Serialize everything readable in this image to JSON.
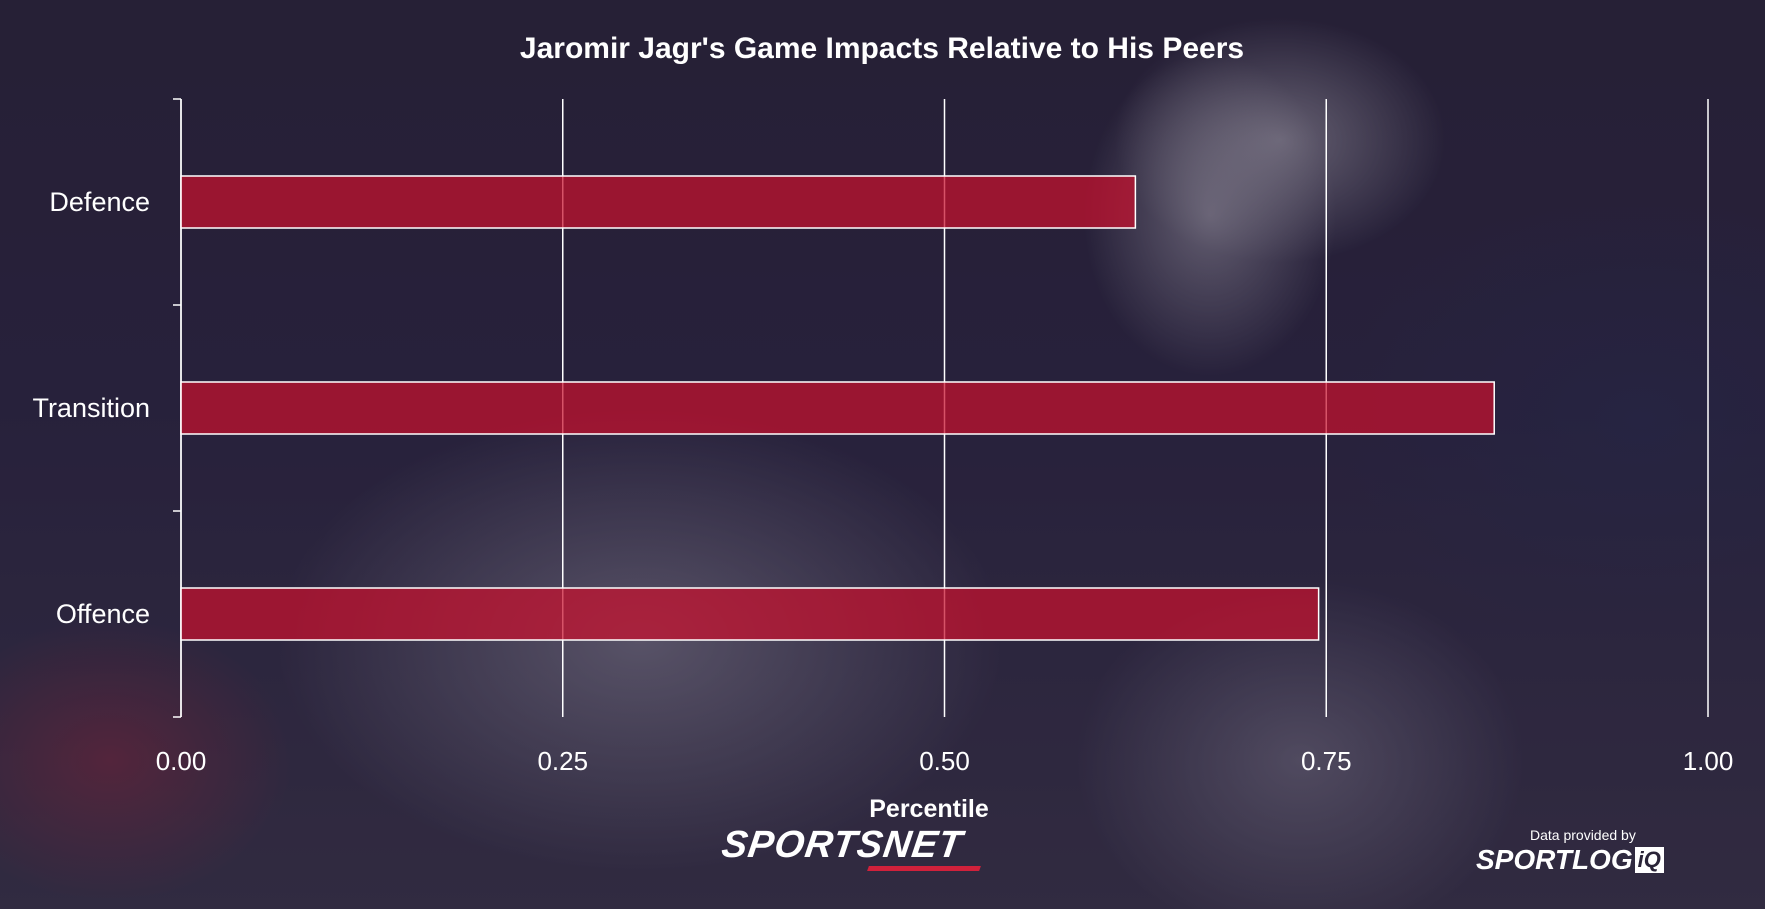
{
  "chart_data": {
    "type": "bar",
    "orientation": "horizontal",
    "title": "Jaromir Jagr's Game Impacts Relative to His Peers",
    "xlabel": "Percentile",
    "ylabel": "",
    "categories": [
      "Defence",
      "Transition",
      "Offence"
    ],
    "values": [
      0.625,
      0.86,
      0.745
    ],
    "xlim": [
      0,
      1
    ],
    "x_ticks": [
      "0.00",
      "0.25",
      "0.50",
      "0.75",
      "1.00"
    ],
    "grid": "vertical",
    "legend": "none",
    "bar_color": "#c8102e"
  },
  "branding": {
    "left_logo": "SPORTSNET",
    "credit_text": "Data provided by",
    "right_logo_main": "SPORTLOG",
    "right_logo_box": "iQ"
  },
  "colors": {
    "bar": "#c8102e",
    "text": "#ffffff",
    "grid": "#ffffff",
    "accent": "#d0213b"
  }
}
